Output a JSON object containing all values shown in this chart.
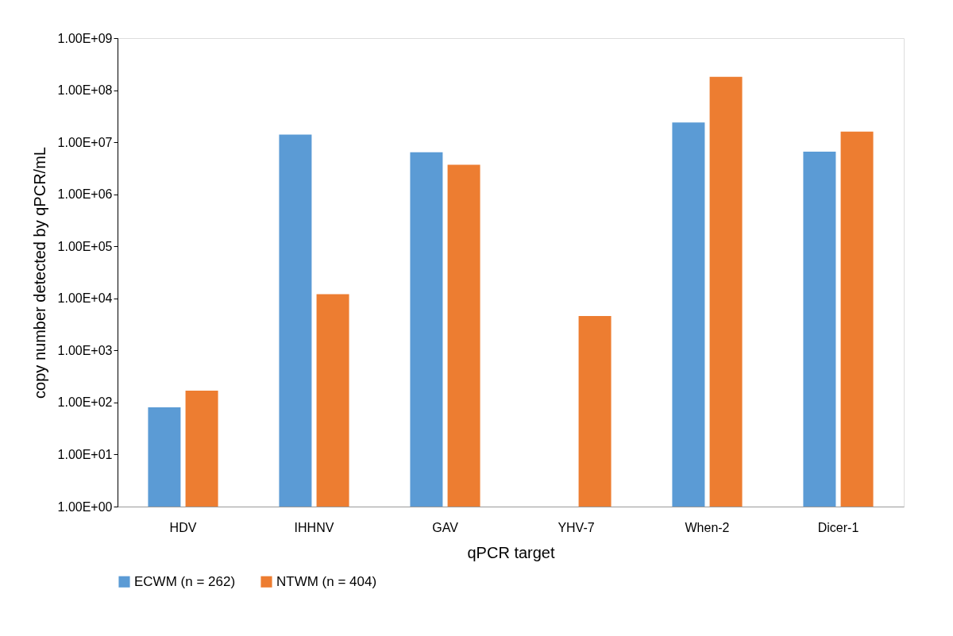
{
  "chart_data": {
    "type": "bar",
    "xlabel": "qPCR target",
    "ylabel": "copy number detected by qPCR/mL",
    "categories": [
      "HDV",
      "IHHNV",
      "GAV",
      "YHV-7",
      "When-2",
      "Dicer-1"
    ],
    "series": [
      {
        "name": "ECWM (n = 262)",
        "color": "#5b9bd5",
        "values": [
          81,
          14000000,
          6400000,
          null,
          24000000,
          6600000
        ]
      },
      {
        "name": "NTWM (n = 404)",
        "color": "#ed7d31",
        "values": [
          169,
          12000,
          3700000,
          4600,
          180000000,
          16000000
        ]
      }
    ],
    "log": "y",
    "ylim": [
      1,
      1000000000
    ],
    "yticks": [
      {
        "value": 1,
        "label": "1.00E+00"
      },
      {
        "value": 10,
        "label": "1.00E+01"
      },
      {
        "value": 100,
        "label": "1.00E+02"
      },
      {
        "value": 1000,
        "label": "1.00E+03"
      },
      {
        "value": 10000,
        "label": "1.00E+04"
      },
      {
        "value": 100000,
        "label": "1.00E+05"
      },
      {
        "value": 1000000,
        "label": "1.00E+06"
      },
      {
        "value": 10000000,
        "label": "1.00E+07"
      },
      {
        "value": 100000000,
        "label": "1.00E+08"
      },
      {
        "value": 1000000000,
        "label": "1.00E+09"
      }
    ],
    "grid": false,
    "legend": "bottom"
  }
}
